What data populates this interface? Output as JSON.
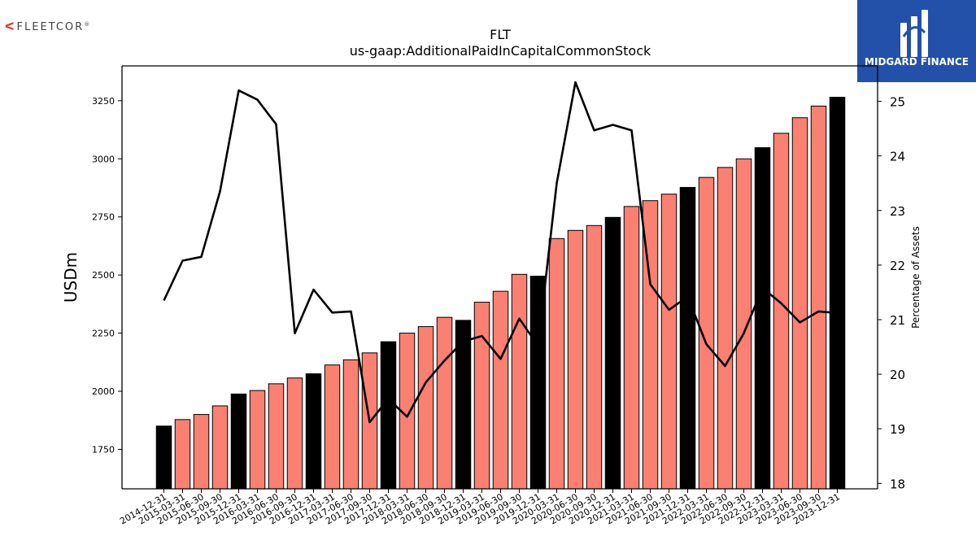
{
  "branding": {
    "left_logo_text": "FLEETCOR",
    "left_logo_reg": "®",
    "right_logo_text": "MIDGARD FINANCE",
    "right_logo_color": "#2350a8"
  },
  "chart_data": {
    "type": "bar",
    "title": "FLT",
    "subtitle": "us-gaap:AdditionalPaidInCapitalCommonStock",
    "ylabel": "USDm",
    "y2label": "Percentage of Assets",
    "ylim": [
      1580,
      3400
    ],
    "y2lim": [
      17.9,
      25.65
    ],
    "yticks": [
      1750,
      2000,
      2250,
      2500,
      2750,
      3000,
      3250
    ],
    "y2ticks": [
      18,
      19,
      20,
      21,
      22,
      23,
      24,
      25
    ],
    "categories": [
      "2014-12-31",
      "2015-03-31",
      "2015-06-30",
      "2015-09-30",
      "2015-12-31",
      "2016-03-31",
      "2016-06-30",
      "2016-09-30",
      "2016-12-31",
      "2017-03-31",
      "2017-06-30",
      "2017-09-30",
      "2017-12-31",
      "2018-03-31",
      "2018-06-30",
      "2018-09-30",
      "2018-12-31",
      "2019-03-31",
      "2019-06-30",
      "2019-09-30",
      "2019-12-31",
      "2020-03-31",
      "2020-06-30",
      "2020-09-30",
      "2020-12-31",
      "2021-03-31",
      "2021-06-30",
      "2021-09-30",
      "2021-12-31",
      "2022-03-31",
      "2022-06-30",
      "2022-09-30",
      "2022-12-31",
      "2023-03-31",
      "2023-06-30",
      "2023-09-30",
      "2023-12-31"
    ],
    "series": [
      {
        "kind": "bar",
        "values": [
          1850,
          1878,
          1900,
          1937,
          1988,
          2003,
          2032,
          2057,
          2075,
          2113,
          2135,
          2165,
          2213,
          2250,
          2278,
          2318,
          2305,
          2383,
          2430,
          2503,
          2495,
          2657,
          2692,
          2713,
          2748,
          2795,
          2820,
          2848,
          2877,
          2920,
          2963,
          3000,
          3048,
          3110,
          3177,
          3227,
          3265
        ],
        "annual_marker": [
          true,
          false,
          false,
          false,
          true,
          false,
          false,
          false,
          true,
          false,
          false,
          false,
          true,
          false,
          false,
          false,
          true,
          false,
          false,
          false,
          true,
          false,
          false,
          false,
          true,
          false,
          false,
          false,
          true,
          false,
          false,
          false,
          true,
          false,
          false,
          false,
          true
        ]
      },
      {
        "kind": "line",
        "axis": "right",
        "values": [
          21.35,
          22.08,
          22.15,
          23.35,
          25.2,
          25.03,
          24.58,
          20.75,
          21.55,
          21.13,
          21.15,
          19.12,
          19.55,
          19.22,
          19.85,
          20.25,
          20.6,
          20.7,
          20.28,
          21.02,
          20.52,
          23.5,
          25.35,
          24.47,
          24.57,
          24.47,
          21.65,
          21.18,
          21.42,
          20.55,
          20.15,
          20.75,
          21.58,
          21.3,
          20.95,
          21.15,
          21.12
        ]
      }
    ],
    "colors": {
      "bar_annual": "#000000",
      "bar_quarter": "#fa8072",
      "line": "#000000"
    }
  }
}
